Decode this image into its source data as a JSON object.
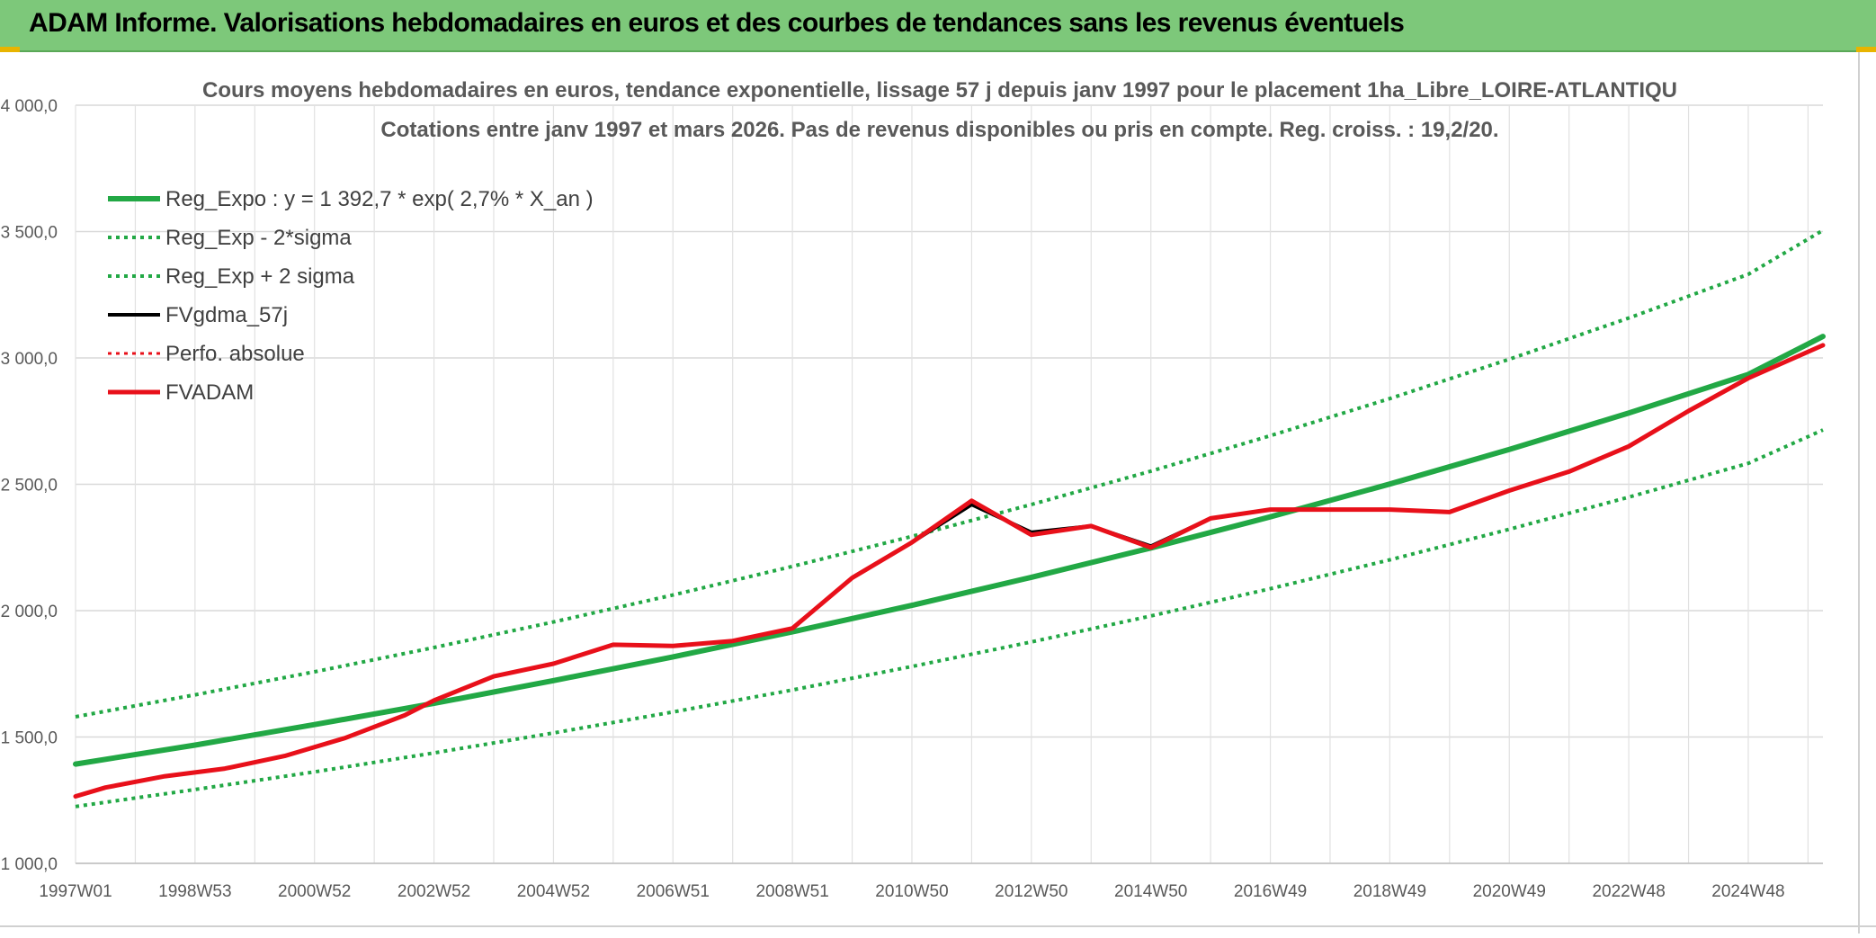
{
  "banner": {
    "title": "ADAM Informe. Valorisations hebdomadaires en euros et des courbes de tendances sans les revenus éventuels"
  },
  "chart_data": {
    "type": "line",
    "title": "Cours moyens hebdomadaires en euros, tendance exponentielle, lissage 57 j depuis janv 1997 pour le placement 1ha_Libre_LOIRE-ATLANTIQU",
    "subtitle": "Cotations entre janv 1997 et mars 2026. Pas de revenus disponibles ou pris en compte. Reg. croiss. : 19,2/20.",
    "xlabel": "",
    "ylabel": "",
    "ylim": [
      1000,
      4000
    ],
    "xlim": [
      1997.0,
      2026.25
    ],
    "yticks": [
      1000,
      1500,
      2000,
      2500,
      3000,
      3500,
      4000
    ],
    "ytick_labels": [
      "1 000,0",
      "1 500,0",
      "2 000,0",
      "2 500,0",
      "3 000,0",
      "3 500,0",
      "4 000,0"
    ],
    "xticks": [
      1997.0,
      1999.0,
      2001.0,
      2003.0,
      2005.0,
      2007.0,
      2009.0,
      2011.0,
      2013.0,
      2015.0,
      2017.0,
      2019.0,
      2021.0,
      2023.0,
      2025.0
    ],
    "xtick_labels": [
      "1997W01",
      "1998W53",
      "2000W52",
      "2002W52",
      "2004W52",
      "2006W51",
      "2008W51",
      "2010W50",
      "2012W50",
      "2014W50",
      "2016W49",
      "2018W49",
      "2020W49",
      "2022W48",
      "2024W48"
    ],
    "grid": true,
    "legend": "top-left",
    "series": [
      {
        "name": "Reg_Expo : y = 1 392,7 * exp( 2,7% *  X_an )",
        "color": "#22a845",
        "style": "solid",
        "width": 6,
        "x": [
          1997,
          1999,
          2001,
          2003,
          2005,
          2007,
          2009,
          2011,
          2013,
          2015,
          2017,
          2019,
          2021,
          2023,
          2025,
          2026.25
        ],
        "y": [
          1393,
          1468,
          1549,
          1633,
          1723,
          1817,
          1916,
          2021,
          2132,
          2248,
          2371,
          2501,
          2638,
          2782,
          2935,
          3085
        ]
      },
      {
        "name": "Reg_Exp - 2*sigma",
        "color": "#22a845",
        "style": "dotted",
        "width": 4,
        "x": [
          1997,
          1999,
          2001,
          2003,
          2005,
          2007,
          2009,
          2011,
          2013,
          2015,
          2017,
          2019,
          2021,
          2023,
          2025,
          2026.25
        ],
        "y": [
          1225,
          1292,
          1362,
          1437,
          1516,
          1599,
          1686,
          1779,
          1876,
          1979,
          2087,
          2201,
          2322,
          2449,
          2583,
          2715
        ]
      },
      {
        "name": "Reg_Exp + 2 sigma",
        "color": "#22a845",
        "style": "dotted",
        "width": 4,
        "x": [
          1997,
          1999,
          2001,
          2003,
          2005,
          2007,
          2009,
          2011,
          2013,
          2015,
          2017,
          2019,
          2021,
          2023,
          2025,
          2026.25
        ],
        "y": [
          1580,
          1667,
          1758,
          1854,
          1955,
          2062,
          2175,
          2294,
          2420,
          2552,
          2692,
          2839,
          2995,
          3158,
          3331,
          3505
        ]
      },
      {
        "name": "FVgdma_57j",
        "color": "#000000",
        "style": "solid",
        "width": 4,
        "x": [
          1997,
          1997.5,
          1998.5,
          1999.5,
          2000.5,
          2001.5,
          2002.5,
          2003.0,
          2004.0,
          2005.0,
          2006.0,
          2007.0,
          2008.0,
          2009.0,
          2010.0,
          2011.0,
          2012.0,
          2013.0,
          2014.0,
          2015.0,
          2016.0,
          2017.0,
          2018.0,
          2019.0,
          2020.0,
          2021.0,
          2022.0,
          2023.0,
          2024.0,
          2025.0,
          2026.25
        ],
        "y": [
          1265,
          1300,
          1345,
          1375,
          1425,
          1495,
          1585,
          1645,
          1740,
          1790,
          1865,
          1860,
          1880,
          1930,
          2130,
          2270,
          2420,
          2310,
          2335,
          2255,
          2365,
          2400,
          2400,
          2400,
          2390,
          2475,
          2550,
          2650,
          2790,
          2920,
          3050
        ]
      },
      {
        "name": "Perfo. absolue",
        "color": "#e8101a",
        "style": "dotted",
        "width": 3,
        "x": [],
        "y": []
      },
      {
        "name": "FVADAM",
        "color": "#e8101a",
        "style": "solid",
        "width": 5,
        "x": [
          1997,
          1997.5,
          1998.5,
          1999.5,
          2000.5,
          2001.5,
          2002.5,
          2003.0,
          2004.0,
          2005.0,
          2006.0,
          2007.0,
          2008.0,
          2009.0,
          2010.0,
          2011.0,
          2012.0,
          2013.0,
          2014.0,
          2015.0,
          2016.0,
          2017.0,
          2018.0,
          2019.0,
          2020.0,
          2021.0,
          2022.0,
          2023.0,
          2024.0,
          2025.0,
          2026.25
        ],
        "y": [
          1265,
          1300,
          1345,
          1375,
          1425,
          1495,
          1585,
          1645,
          1740,
          1790,
          1865,
          1860,
          1880,
          1930,
          2130,
          2270,
          2435,
          2300,
          2335,
          2250,
          2365,
          2400,
          2400,
          2400,
          2390,
          2475,
          2550,
          2650,
          2790,
          2920,
          3050
        ]
      }
    ]
  }
}
